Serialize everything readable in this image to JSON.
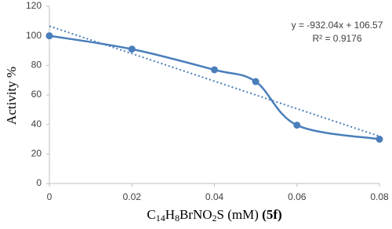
{
  "chart_data": {
    "type": "line",
    "y_label": "Activity %",
    "x_label_parts": [
      {
        "text": "C"
      },
      {
        "text": "14",
        "style": "sub"
      },
      {
        "text": "H"
      },
      {
        "text": "8",
        "style": "sub"
      },
      {
        "text": "BrNO"
      },
      {
        "text": "2",
        "style": "sub"
      },
      {
        "text": "S (mM) "
      },
      {
        "text": "(5f)",
        "style": "bold"
      }
    ],
    "x": [
      0,
      0.02,
      0.04,
      0.05,
      0.06,
      0.08
    ],
    "series": [
      {
        "color": "#4a7ebb",
        "values": [
          100,
          91,
          77,
          69,
          39.5,
          30
        ]
      }
    ],
    "xlim": [
      0,
      0.08
    ],
    "xticks": [
      0,
      0.02,
      0.04,
      0.06,
      0.08
    ],
    "ylim": [
      0,
      120
    ],
    "yticks": [
      0,
      20,
      40,
      60,
      80,
      100,
      120
    ],
    "grid": false,
    "trendline": {
      "slope": -932.04,
      "intercept": 106.57,
      "equation": "y = -932.04x + 106.57",
      "r_squared": "R² = 0.9176"
    }
  }
}
